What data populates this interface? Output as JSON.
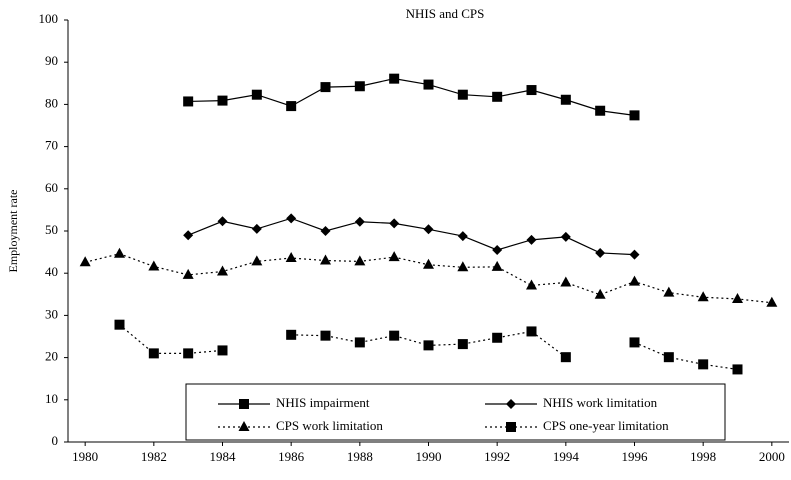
{
  "chart_data": {
    "type": "line",
    "title": "NHIS and CPS",
    "y_label": "Employment rate",
    "xlim": [
      1979.5,
      2000.5
    ],
    "xticks": [
      1980,
      1982,
      1984,
      1986,
      1988,
      1990,
      1992,
      1994,
      1996,
      1998,
      2000
    ],
    "ylim": [
      0,
      100
    ],
    "yticks": [
      0,
      10,
      20,
      30,
      40,
      50,
      60,
      70,
      80,
      90,
      100
    ],
    "grid": false,
    "legend": "bottom",
    "series": [
      {
        "name": "NHIS impairment",
        "color": "#000000",
        "line_style": "solid",
        "marker": "square",
        "x": [
          1983,
          1984,
          1985,
          1986,
          1987,
          1988,
          1989,
          1990,
          1991,
          1992,
          1993,
          1994,
          1995,
          1996
        ],
        "values": [
          80.7,
          80.9,
          82.3,
          79.6,
          84.1,
          84.3,
          86.1,
          84.7,
          82.3,
          81.8,
          83.4,
          81.1,
          78.5,
          77.4
        ]
      },
      {
        "name": "NHIS work limitation",
        "color": "#000000",
        "line_style": "solid",
        "marker": "diamond",
        "x": [
          1983,
          1984,
          1985,
          1986,
          1987,
          1988,
          1989,
          1990,
          1991,
          1992,
          1993,
          1994,
          1995,
          1996
        ],
        "values": [
          49,
          52.3,
          50.5,
          53,
          50,
          52.2,
          51.8,
          50.4,
          48.8,
          45.5,
          47.9,
          48.6,
          44.8,
          44.4
        ]
      },
      {
        "name": "CPS work limitation",
        "color": "#000000",
        "line_style": "dotted",
        "marker": "triangle",
        "x": [
          1980,
          1981,
          1982,
          1983,
          1984,
          1985,
          1986,
          1987,
          1988,
          1989,
          1990,
          1991,
          1992,
          1993,
          1994,
          1995,
          1996,
          1997,
          1998,
          1999,
          2000
        ],
        "values": [
          42.6,
          44.6,
          41.6,
          39.6,
          40.4,
          42.8,
          43.6,
          43,
          42.8,
          43.8,
          42,
          41.4,
          41.5,
          37.1,
          37.8,
          34.9,
          38,
          35.4,
          34.3,
          33.9,
          33
        ]
      },
      {
        "name": "CPS one-year limitation",
        "color": "#000000",
        "line_style": "dotted",
        "marker": "square",
        "x": [
          1981,
          1982,
          1983,
          1984,
          1985,
          1986,
          1987,
          1988,
          1989,
          1990,
          1991,
          1992,
          1993,
          1994,
          1995,
          1996,
          1997,
          1998,
          1999
        ],
        "values": [
          27.8,
          21,
          21,
          21.7,
          null,
          25.4,
          25.2,
          23.6,
          25.2,
          22.9,
          23.2,
          24.7,
          26.2,
          20.1,
          null,
          23.6,
          20.1,
          18.4,
          17.2
        ]
      }
    ]
  }
}
